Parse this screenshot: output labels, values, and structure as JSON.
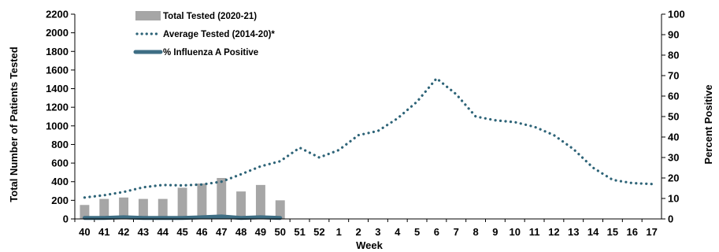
{
  "chart_data": {
    "type": "bar",
    "categories": [
      "40",
      "41",
      "42",
      "43",
      "44",
      "45",
      "46",
      "47",
      "48",
      "49",
      "50",
      "51",
      "52",
      "1",
      "2",
      "3",
      "4",
      "5",
      "6",
      "7",
      "8",
      "9",
      "10",
      "11",
      "12",
      "13",
      "14",
      "15",
      "16",
      "17"
    ],
    "xlabel": "Week",
    "ylabel": "Total Number of Patients Tested",
    "y2label": "Percent Positive",
    "ylim": [
      0,
      2200
    ],
    "y2lim": [
      0,
      100
    ],
    "yticks": [
      0,
      200,
      400,
      600,
      800,
      1000,
      1200,
      1400,
      1600,
      1800,
      2000,
      2200
    ],
    "y2ticks": [
      0,
      10,
      20,
      30,
      40,
      50,
      60,
      70,
      80,
      90,
      100
    ],
    "grid": false,
    "legend_position": "top-left",
    "series": [
      {
        "name": "Total Tested (2020-21)",
        "kind": "bar",
        "axis": "left",
        "color": "#a6a6a6",
        "values": [
          150,
          215,
          230,
          215,
          215,
          335,
          380,
          440,
          295,
          365,
          200,
          null,
          null,
          null,
          null,
          null,
          null,
          null,
          null,
          null,
          null,
          null,
          null,
          null,
          null,
          null,
          null,
          null,
          null,
          null
        ]
      },
      {
        "name": "Average Tested (2014-20)*",
        "kind": "dotted-line",
        "axis": "left",
        "color": "#2e6478",
        "values": [
          230,
          255,
          290,
          340,
          365,
          360,
          370,
          400,
          480,
          565,
          620,
          765,
          660,
          740,
          900,
          945,
          1080,
          1260,
          1510,
          1340,
          1100,
          1060,
          1040,
          990,
          900,
          750,
          550,
          420,
          385,
          375
        ]
      },
      {
        "name": "% Influenza A Positive",
        "kind": "line",
        "axis": "right",
        "color": "#3e6e84",
        "values": [
          0.5,
          0.5,
          0.8,
          0.5,
          0.5,
          0.5,
          0.8,
          1.2,
          0.5,
          0.8,
          0.5,
          null,
          null,
          null,
          null,
          null,
          null,
          null,
          null,
          null,
          null,
          null,
          null,
          null,
          null,
          null,
          null,
          null,
          null,
          null
        ]
      }
    ]
  }
}
